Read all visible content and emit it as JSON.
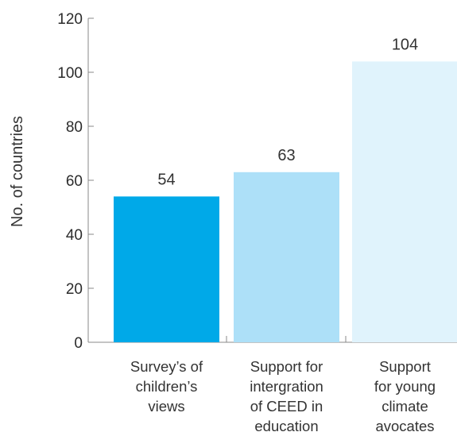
{
  "chart_data": {
    "type": "bar",
    "title": "",
    "xlabel": "",
    "ylabel": "No. of countries",
    "ylim": [
      0,
      120
    ],
    "yticks": [
      0,
      20,
      40,
      60,
      80,
      100,
      120
    ],
    "grid": false,
    "categories": [
      [
        "Survey’s of",
        "children’s",
        "views"
      ],
      [
        "Support for",
        "intergration",
        "of CEED in",
        "education"
      ],
      [
        "Support",
        "for young",
        "climate",
        "avocates"
      ]
    ],
    "values": [
      54,
      63,
      104
    ],
    "colors": [
      "#00a9e8",
      "#ade0f8",
      "#e0f3fc"
    ]
  }
}
